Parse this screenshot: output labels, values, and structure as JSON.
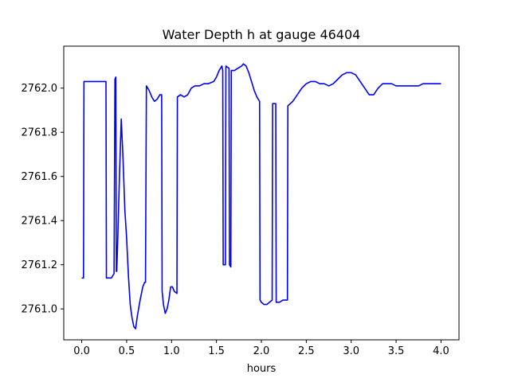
{
  "chart_data": {
    "type": "line",
    "title": "Water Depth h at gauge 46404",
    "xlabel": "hours",
    "ylabel": "",
    "xlim": [
      -0.2,
      4.2
    ],
    "ylim": [
      2760.86,
      2762.19
    ],
    "xticks": [
      0.0,
      0.5,
      1.0,
      1.5,
      2.0,
      2.5,
      3.0,
      3.5,
      4.0
    ],
    "xtick_labels": [
      "0.0",
      "0.5",
      "1.0",
      "1.5",
      "2.0",
      "2.5",
      "3.0",
      "3.5",
      "4.0"
    ],
    "yticks": [
      2761.0,
      2761.2,
      2761.4,
      2761.6,
      2761.8,
      2762.0
    ],
    "ytick_labels": [
      "2761.0",
      "2761.2",
      "2761.4",
      "2761.6",
      "2761.8",
      "2762.0"
    ],
    "grid": false,
    "series": [
      {
        "color": "#0000ff",
        "x": [
          0.0,
          0.02,
          0.025,
          0.27,
          0.275,
          0.33,
          0.36,
          0.37,
          0.38,
          0.385,
          0.39,
          0.4,
          0.42,
          0.44,
          0.46,
          0.48,
          0.5,
          0.52,
          0.54,
          0.56,
          0.58,
          0.6,
          0.62,
          0.65,
          0.68,
          0.7,
          0.71,
          0.72,
          0.75,
          0.78,
          0.81,
          0.84,
          0.87,
          0.89,
          0.895,
          0.91,
          0.93,
          0.95,
          0.97,
          0.99,
          1.01,
          1.03,
          1.06,
          1.065,
          1.1,
          1.14,
          1.18,
          1.22,
          1.26,
          1.31,
          1.36,
          1.41,
          1.47,
          1.5,
          1.53,
          1.56,
          1.57,
          1.575,
          1.6,
          1.605,
          1.64,
          1.645,
          1.66,
          1.665,
          1.7,
          1.74,
          1.78,
          1.8,
          1.83,
          1.86,
          1.89,
          1.92,
          1.95,
          1.98,
          1.985,
          2.0,
          2.03,
          2.06,
          2.09,
          2.12,
          2.125,
          2.16,
          2.165,
          2.2,
          2.24,
          2.29,
          2.295,
          2.35,
          2.4,
          2.45,
          2.5,
          2.55,
          2.6,
          2.65,
          2.7,
          2.75,
          2.8,
          2.85,
          2.9,
          2.95,
          3.0,
          3.05,
          3.1,
          3.15,
          3.2,
          3.25,
          3.3,
          3.35,
          3.4,
          3.45,
          3.5,
          3.55,
          3.6,
          3.65,
          3.7,
          3.75,
          3.8,
          3.85,
          3.9,
          3.95,
          4.0
        ],
        "y": [
          2761.14,
          2761.14,
          2762.03,
          2762.03,
          2761.14,
          2761.14,
          2761.16,
          2762.04,
          2762.05,
          2761.17,
          2761.17,
          2761.3,
          2761.6,
          2761.86,
          2761.68,
          2761.45,
          2761.32,
          2761.15,
          2761.02,
          2760.96,
          2760.92,
          2760.91,
          2760.97,
          2761.04,
          2761.1,
          2761.12,
          2761.12,
          2762.01,
          2761.99,
          2761.96,
          2761.94,
          2761.95,
          2761.97,
          2761.97,
          2761.08,
          2761.02,
          2760.98,
          2761.0,
          2761.04,
          2761.1,
          2761.1,
          2761.08,
          2761.07,
          2761.96,
          2761.97,
          2761.96,
          2761.97,
          2762.0,
          2762.01,
          2762.01,
          2762.02,
          2762.02,
          2762.03,
          2762.05,
          2762.08,
          2762.1,
          2762.08,
          2761.2,
          2761.2,
          2762.1,
          2762.09,
          2761.2,
          2761.19,
          2762.08,
          2762.08,
          2762.09,
          2762.1,
          2762.11,
          2762.1,
          2762.07,
          2762.03,
          2761.99,
          2761.96,
          2761.94,
          2761.04,
          2761.03,
          2761.02,
          2761.02,
          2761.03,
          2761.04,
          2761.93,
          2761.93,
          2761.03,
          2761.03,
          2761.04,
          2761.04,
          2761.92,
          2761.94,
          2761.97,
          2762.0,
          2762.02,
          2762.03,
          2762.03,
          2762.02,
          2762.02,
          2762.01,
          2762.02,
          2762.04,
          2762.06,
          2762.07,
          2762.07,
          2762.06,
          2762.03,
          2762.0,
          2761.97,
          2761.97,
          2762.0,
          2762.02,
          2762.02,
          2762.02,
          2762.01,
          2762.01,
          2762.01,
          2762.01,
          2762.01,
          2762.01,
          2762.02,
          2762.02,
          2762.02,
          2762.02,
          2762.02
        ]
      }
    ]
  }
}
